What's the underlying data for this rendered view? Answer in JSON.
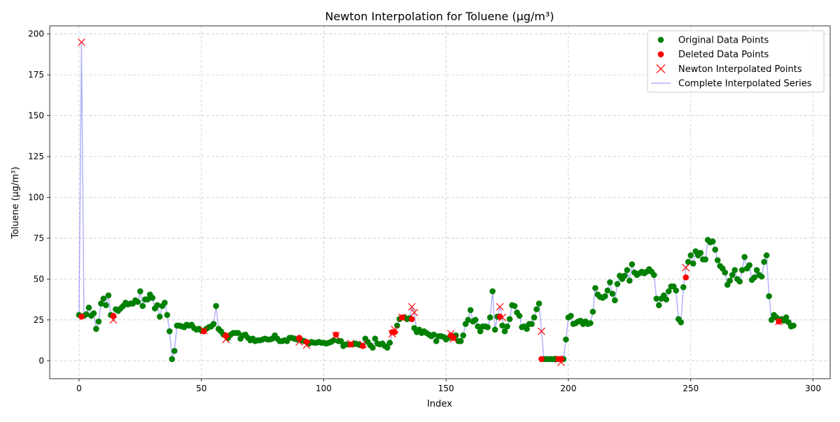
{
  "chart_data": {
    "type": "line",
    "title": "Newton Interpolation for Toluene (µg/m³)",
    "xlabel": "Index",
    "ylabel": "Toluene (µg/m³)",
    "xlim": [
      -12,
      307
    ],
    "ylim": [
      -11,
      205
    ],
    "xticks": [
      0,
      50,
      100,
      150,
      200,
      250,
      300
    ],
    "yticks": [
      0,
      25,
      50,
      75,
      100,
      125,
      150,
      175,
      200
    ],
    "grid": true,
    "legend_position": "top-right",
    "colors": {
      "original": "#008000",
      "deleted": "#ff0000",
      "interpolated": "#ff0000",
      "series_line": "#0000ff"
    },
    "legend": [
      {
        "label": "Original Data Points",
        "marker": "dot-green"
      },
      {
        "label": "Deleted Data Points",
        "marker": "dot-red"
      },
      {
        "label": "Newton Interpolated Points",
        "marker": "x-red"
      },
      {
        "label": "Complete Interpolated Series",
        "marker": "line-blue"
      }
    ],
    "series": [
      {
        "name": "Original Data Points",
        "points": [
          [
            0,
            28
          ],
          [
            2,
            27.5
          ],
          [
            3,
            28.5
          ],
          [
            4,
            32.5
          ],
          [
            5,
            27.5
          ],
          [
            6,
            29
          ],
          [
            7,
            19.5
          ],
          [
            8,
            24
          ],
          [
            9,
            35
          ],
          [
            10,
            38
          ],
          [
            11,
            34
          ],
          [
            12,
            40
          ],
          [
            13,
            28
          ],
          [
            15,
            31.5
          ],
          [
            16,
            30.5
          ],
          [
            17,
            32
          ],
          [
            18,
            33.5
          ],
          [
            19,
            35.5
          ],
          [
            20,
            34.5
          ],
          [
            21,
            35
          ],
          [
            22,
            35
          ],
          [
            23,
            37
          ],
          [
            24,
            36
          ],
          [
            25,
            42.5
          ],
          [
            26,
            33.5
          ],
          [
            27,
            37.5
          ],
          [
            28,
            37.5
          ],
          [
            29,
            40.5
          ],
          [
            30,
            38.5
          ],
          [
            31,
            32
          ],
          [
            32,
            34
          ],
          [
            33,
            27
          ],
          [
            34,
            33.5
          ],
          [
            35,
            35.5
          ],
          [
            36,
            28
          ],
          [
            37,
            18
          ],
          [
            38,
            1
          ],
          [
            39,
            6
          ],
          [
            40,
            21.5
          ],
          [
            41,
            21.5
          ],
          [
            42,
            21
          ],
          [
            43,
            20.5
          ],
          [
            44,
            22
          ],
          [
            45,
            21.5
          ],
          [
            46,
            22
          ],
          [
            47,
            20
          ],
          [
            48,
            19
          ],
          [
            49,
            19.5
          ],
          [
            50,
            18.5
          ],
          [
            52,
            19.5
          ],
          [
            53,
            20.5
          ],
          [
            54,
            21
          ],
          [
            55,
            22.5
          ],
          [
            56,
            33.5
          ],
          [
            57,
            19.5
          ],
          [
            58,
            18
          ],
          [
            59,
            16
          ],
          [
            61,
            14
          ],
          [
            62,
            16
          ],
          [
            63,
            17
          ],
          [
            64,
            17
          ],
          [
            65,
            17
          ],
          [
            66,
            13.5
          ],
          [
            67,
            15.5
          ],
          [
            68,
            16
          ],
          [
            69,
            14
          ],
          [
            70,
            12.5
          ],
          [
            71,
            13.5
          ],
          [
            72,
            12
          ],
          [
            73,
            12.5
          ],
          [
            74,
            12.5
          ],
          [
            75,
            13
          ],
          [
            76,
            13.5
          ],
          [
            77,
            13
          ],
          [
            78,
            13
          ],
          [
            79,
            13.5
          ],
          [
            80,
            15.5
          ],
          [
            81,
            13.5
          ],
          [
            82,
            12
          ],
          [
            83,
            12
          ],
          [
            84,
            12.5
          ],
          [
            85,
            12
          ],
          [
            86,
            14
          ],
          [
            87,
            14
          ],
          [
            88,
            13.5
          ],
          [
            89,
            13
          ],
          [
            91,
            12.5
          ],
          [
            92,
            12
          ],
          [
            94,
            10.5
          ],
          [
            95,
            11.5
          ],
          [
            96,
            11
          ],
          [
            97,
            11
          ],
          [
            98,
            11.5
          ],
          [
            99,
            11
          ],
          [
            100,
            11
          ],
          [
            101,
            10.5
          ],
          [
            102,
            11
          ],
          [
            103,
            11.5
          ],
          [
            104,
            12.5
          ],
          [
            106,
            12
          ],
          [
            107,
            12
          ],
          [
            108,
            9
          ],
          [
            109,
            10
          ],
          [
            110,
            10
          ],
          [
            112,
            10
          ],
          [
            113,
            10.5
          ],
          [
            114,
            10
          ],
          [
            115,
            9.5
          ],
          [
            117,
            13.5
          ],
          [
            118,
            11.5
          ],
          [
            119,
            9.5
          ],
          [
            120,
            8
          ],
          [
            121,
            13.5
          ],
          [
            122,
            10.5
          ],
          [
            123,
            10
          ],
          [
            124,
            10.5
          ],
          [
            125,
            9
          ],
          [
            126,
            8
          ],
          [
            127,
            11
          ],
          [
            130,
            21.5
          ],
          [
            131,
            25.5
          ],
          [
            133,
            26.5
          ],
          [
            134,
            25.5
          ],
          [
            135,
            26
          ],
          [
            137,
            20
          ],
          [
            138,
            17.5
          ],
          [
            139,
            19
          ],
          [
            140,
            17
          ],
          [
            141,
            18
          ],
          [
            142,
            17
          ],
          [
            143,
            16
          ],
          [
            144,
            15
          ],
          [
            145,
            16
          ],
          [
            146,
            12
          ],
          [
            147,
            15
          ],
          [
            148,
            15
          ],
          [
            149,
            14.5
          ],
          [
            150,
            13
          ],
          [
            151,
            14
          ],
          [
            152,
            15
          ],
          [
            154,
            15.5
          ],
          [
            155,
            12
          ],
          [
            156,
            12
          ],
          [
            157,
            15.5
          ],
          [
            158,
            22.5
          ],
          [
            159,
            25
          ],
          [
            160,
            31
          ],
          [
            161,
            24
          ],
          [
            162,
            25
          ],
          [
            163,
            21
          ],
          [
            164,
            18
          ],
          [
            165,
            21
          ],
          [
            166,
            21
          ],
          [
            167,
            20.5
          ],
          [
            168,
            26.5
          ],
          [
            169,
            42.5
          ],
          [
            170,
            19
          ],
          [
            171,
            27
          ],
          [
            173,
            21.5
          ],
          [
            174,
            18
          ],
          [
            175,
            21
          ],
          [
            176,
            25.5
          ],
          [
            177,
            34
          ],
          [
            178,
            33.5
          ],
          [
            179,
            29.5
          ],
          [
            180,
            27.5
          ],
          [
            181,
            20.5
          ],
          [
            182,
            21
          ],
          [
            183,
            19.5
          ],
          [
            184,
            22.5
          ],
          [
            185,
            22.5
          ],
          [
            186,
            26.5
          ],
          [
            187,
            31.5
          ],
          [
            188,
            35
          ],
          [
            190,
            1
          ],
          [
            191,
            1
          ],
          [
            192,
            1
          ],
          [
            193,
            1
          ],
          [
            194,
            1
          ],
          [
            195,
            1
          ],
          [
            198,
            1
          ],
          [
            199,
            13
          ],
          [
            200,
            26.5
          ],
          [
            201,
            27.5
          ],
          [
            202,
            22.5
          ],
          [
            203,
            23
          ],
          [
            204,
            24
          ],
          [
            205,
            24.5
          ],
          [
            206,
            22.5
          ],
          [
            207,
            24
          ],
          [
            208,
            22.5
          ],
          [
            209,
            23
          ],
          [
            210,
            30
          ],
          [
            211,
            44.5
          ],
          [
            212,
            40.5
          ],
          [
            213,
            39
          ],
          [
            214,
            38.5
          ],
          [
            215,
            39.5
          ],
          [
            216,
            43
          ],
          [
            217,
            48
          ],
          [
            218,
            41
          ],
          [
            219,
            37
          ],
          [
            220,
            47
          ],
          [
            221,
            52
          ],
          [
            222,
            50
          ],
          [
            223,
            52
          ],
          [
            224,
            55.5
          ],
          [
            225,
            49
          ],
          [
            226,
            59
          ],
          [
            227,
            54
          ],
          [
            228,
            52.5
          ],
          [
            229,
            53.5
          ],
          [
            230,
            54.5
          ],
          [
            231,
            53.5
          ],
          [
            232,
            54.5
          ],
          [
            233,
            56
          ],
          [
            234,
            54.5
          ],
          [
            235,
            52.5
          ],
          [
            236,
            38
          ],
          [
            237,
            34
          ],
          [
            238,
            38
          ],
          [
            239,
            40
          ],
          [
            240,
            37.5
          ],
          [
            241,
            42.5
          ],
          [
            242,
            45.5
          ],
          [
            243,
            45.5
          ],
          [
            244,
            43
          ],
          [
            245,
            25.5
          ],
          [
            246,
            23.5
          ],
          [
            247,
            45
          ],
          [
            249,
            60.5
          ],
          [
            250,
            64.5
          ],
          [
            251,
            59.5
          ],
          [
            252,
            67
          ],
          [
            253,
            64.5
          ],
          [
            254,
            66
          ],
          [
            255,
            62
          ],
          [
            256,
            62
          ],
          [
            257,
            74
          ],
          [
            258,
            72.5
          ],
          [
            259,
            73
          ],
          [
            260,
            68
          ],
          [
            261,
            61.5
          ],
          [
            262,
            58
          ],
          [
            263,
            56.5
          ],
          [
            264,
            54
          ],
          [
            265,
            46.5
          ],
          [
            266,
            49
          ],
          [
            267,
            52.5
          ],
          [
            268,
            55.5
          ],
          [
            269,
            50
          ],
          [
            270,
            48.5
          ],
          [
            271,
            55.5
          ],
          [
            272,
            63.5
          ],
          [
            273,
            56.5
          ],
          [
            274,
            58.5
          ],
          [
            275,
            49.5
          ],
          [
            276,
            51
          ],
          [
            277,
            55.5
          ],
          [
            278,
            52.5
          ],
          [
            279,
            51.5
          ],
          [
            280,
            60.5
          ],
          [
            281,
            64.5
          ],
          [
            282,
            39.5
          ],
          [
            283,
            25
          ],
          [
            284,
            28
          ],
          [
            285,
            26.5
          ],
          [
            287,
            25.5
          ],
          [
            288,
            24.5
          ],
          [
            289,
            26.5
          ],
          [
            290,
            23.5
          ],
          [
            291,
            21
          ],
          [
            292,
            21.5
          ]
        ]
      },
      {
        "name": "Deleted Data Points",
        "points": [
          [
            1,
            27
          ],
          [
            14,
            27.5
          ],
          [
            51,
            18
          ],
          [
            60,
            15.5
          ],
          [
            90,
            14
          ],
          [
            93,
            11.5
          ],
          [
            105,
            16
          ],
          [
            111,
            10
          ],
          [
            116,
            9
          ],
          [
            128,
            17.5
          ],
          [
            129,
            17.5
          ],
          [
            132,
            26.5
          ],
          [
            136,
            25.5
          ],
          [
            152,
            15.5
          ],
          [
            153,
            14
          ],
          [
            172,
            27
          ],
          [
            189,
            1
          ],
          [
            196,
            1
          ],
          [
            197,
            1
          ],
          [
            248,
            51
          ],
          [
            286,
            24
          ]
        ]
      },
      {
        "name": "Newton Interpolated Points",
        "points": [
          [
            1,
            195
          ],
          [
            14,
            25
          ],
          [
            51,
            18.5
          ],
          [
            60,
            13
          ],
          [
            90,
            11.5
          ],
          [
            93,
            9.5
          ],
          [
            105,
            15.5
          ],
          [
            111,
            10.5
          ],
          [
            116,
            10
          ],
          [
            128,
            16.5
          ],
          [
            129,
            19
          ],
          [
            132,
            26.5
          ],
          [
            136,
            33
          ],
          [
            137,
            29.5
          ],
          [
            152,
            16.5
          ],
          [
            153,
            13.5
          ],
          [
            172,
            33
          ],
          [
            173,
            26.5
          ],
          [
            189,
            18
          ],
          [
            196,
            1
          ],
          [
            197,
            -1
          ],
          [
            248,
            57
          ],
          [
            286,
            24
          ]
        ]
      }
    ]
  }
}
